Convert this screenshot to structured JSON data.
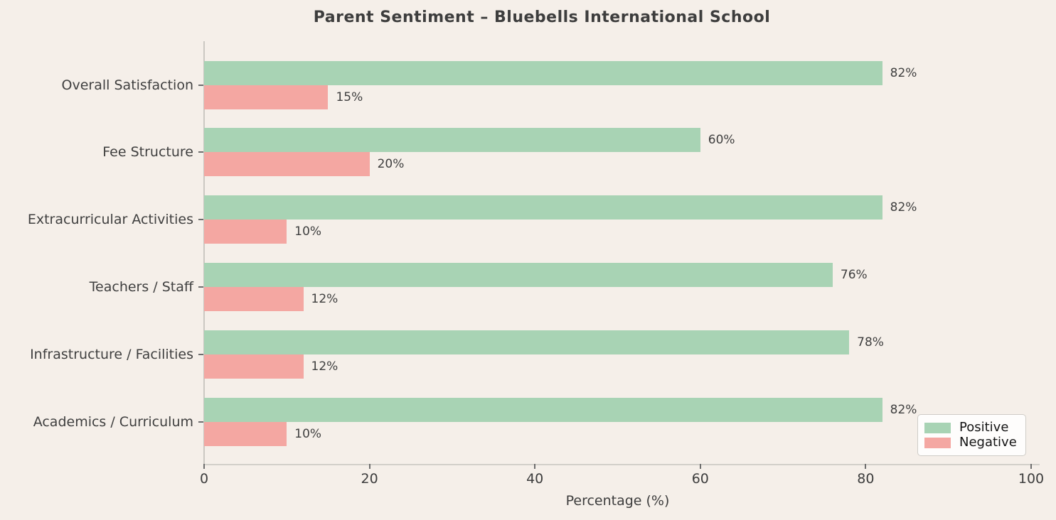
{
  "title": "Parent Sentiment – Bluebells International School",
  "chart_data": {
    "type": "bar",
    "orientation": "horizontal",
    "title": "Parent Sentiment – Bluebells International School",
    "categories": [
      "Overall Satisfaction",
      "Fee Structure",
      "Extracurricular Activities",
      "Teachers / Staff",
      "Infrastructure / Facilities",
      "Academics / Curriculum"
    ],
    "series": [
      {
        "name": "Positive",
        "color": "#a8d3b4",
        "values": [
          82,
          60,
          82,
          76,
          78,
          82
        ]
      },
      {
        "name": "Negative",
        "color": "#f4a7a2",
        "values": [
          15,
          20,
          10,
          12,
          12,
          10
        ]
      }
    ],
    "value_label_suffix": "%",
    "xlabel": "Percentage (%)",
    "xlim": [
      0,
      100
    ],
    "xticks": [
      0,
      20,
      40,
      60,
      80,
      100
    ],
    "grid": false,
    "legend_position": "lower right",
    "background_color": "#f5efe9"
  },
  "colors": {
    "background": "#f5efe9",
    "positive": "#a8d3b4",
    "negative": "#f4a7a2",
    "text": "#3d3d3d",
    "spine": "#cbc8c2"
  }
}
